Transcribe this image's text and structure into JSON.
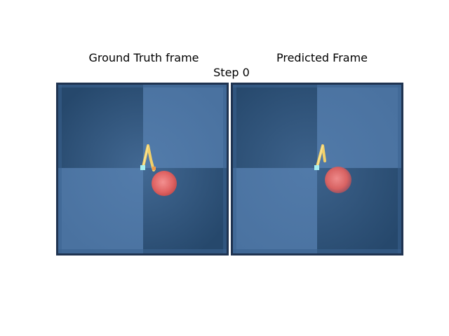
{
  "figure": {
    "left_title": "Ground Truth frame",
    "right_title": "Predicted Frame",
    "step_label": "Step 0"
  },
  "colors": {
    "border": "#1f3350",
    "dark_tile": "#26486c",
    "light_tile": "#4a72a0",
    "mid_tile": "#3a6290",
    "ball": "#e06868",
    "ball_highlight": "#f28a8a",
    "arm": "#f2d06a",
    "arm_tip": "#a6f0f2"
  },
  "panels": [
    {
      "id": "ground-truth",
      "icon": "reacher-arm-and-target"
    },
    {
      "id": "predicted",
      "icon": "reacher-arm-and-target"
    }
  ]
}
